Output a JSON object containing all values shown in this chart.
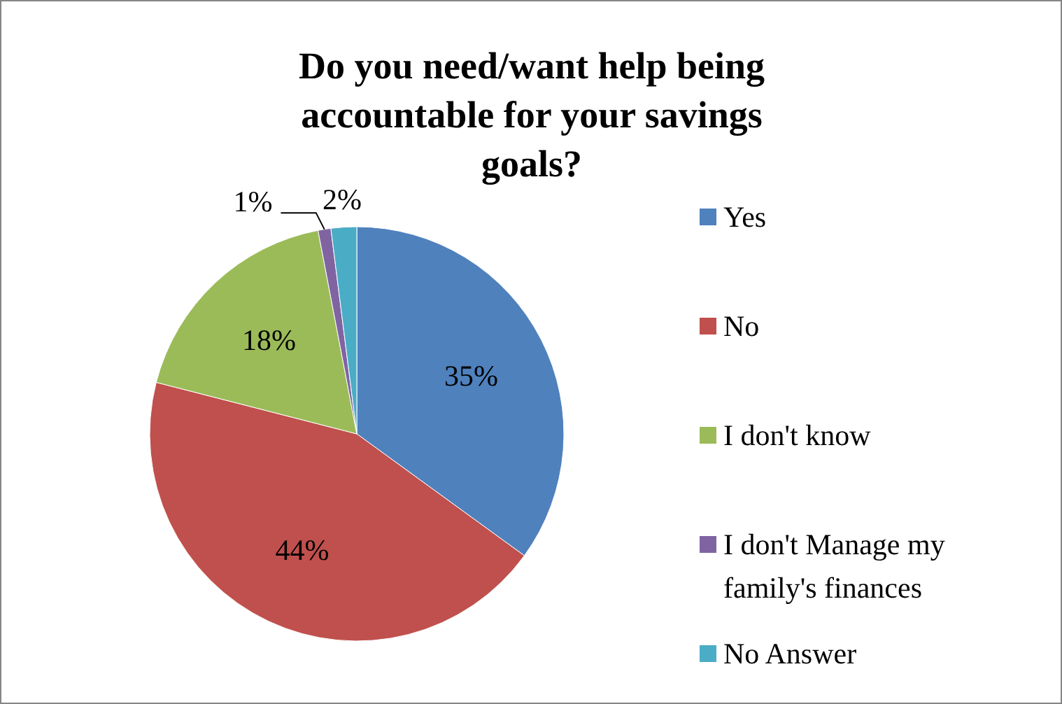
{
  "chart_data": {
    "type": "pie",
    "title": "Do you need/want help being accountable for your savings goals?",
    "categories": [
      "Yes",
      "No",
      "I don't know",
      "I don't Manage my family's finances",
      "No Answer"
    ],
    "values": [
      35,
      44,
      18,
      1,
      2
    ],
    "colors": [
      "#4f81bd",
      "#c0504d",
      "#9bbb59",
      "#8064a2",
      "#4bacc6"
    ],
    "value_labels": [
      "35%",
      "44%",
      "18%",
      "1%",
      "2%"
    ],
    "legend": "right"
  }
}
